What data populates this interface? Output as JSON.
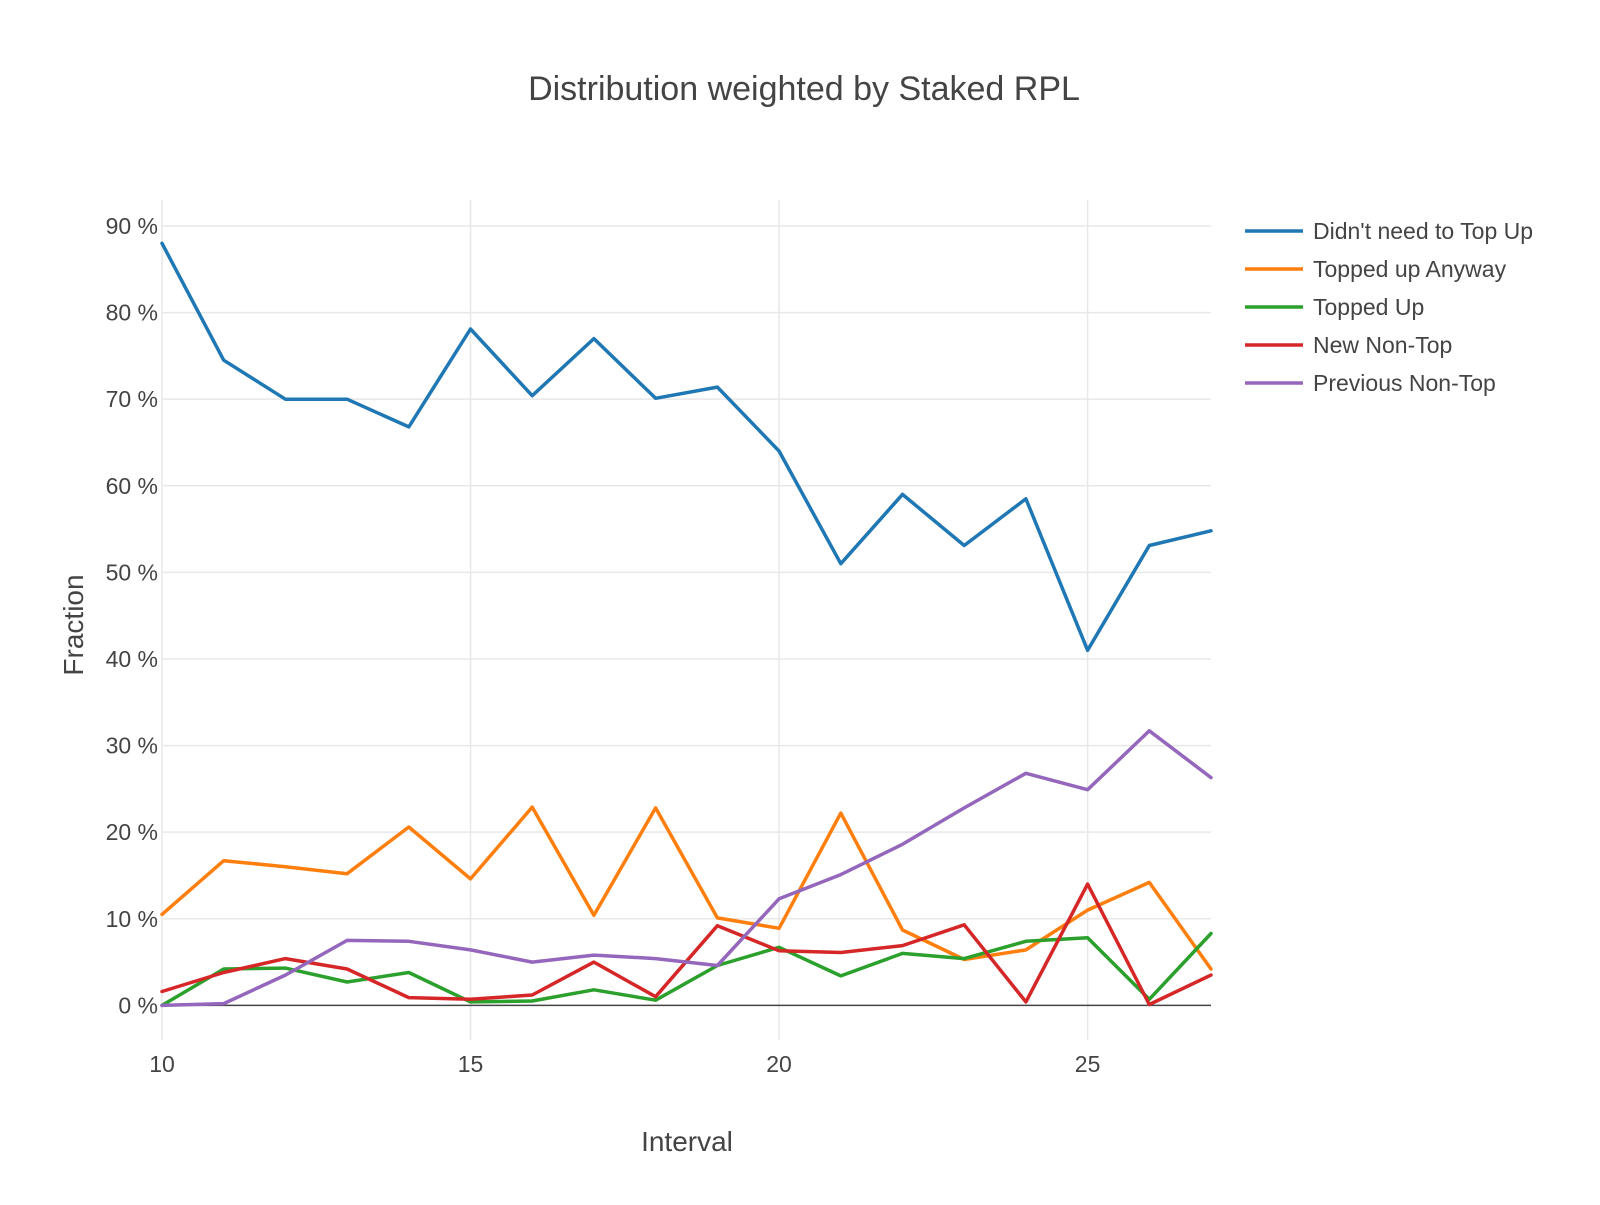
{
  "chart_data": {
    "type": "line",
    "title": "Distribution weighted by Staked RPL",
    "xlabel": "Interval",
    "ylabel": "Fraction",
    "x": [
      10,
      11,
      12,
      13,
      14,
      15,
      16,
      17,
      18,
      19,
      20,
      21,
      22,
      23,
      24,
      25,
      26,
      27
    ],
    "xlim": [
      10,
      27
    ],
    "ylim": [
      -4,
      93
    ],
    "x_ticks": [
      10,
      15,
      20,
      25
    ],
    "y_ticks": [
      0,
      10,
      20,
      30,
      40,
      50,
      60,
      70,
      80,
      90
    ],
    "y_tick_labels": [
      "0 %",
      "10 %",
      "20 %",
      "30 %",
      "40 %",
      "50 %",
      "60 %",
      "70 %",
      "80 %",
      "90 %"
    ],
    "grid": true,
    "legend_position": "right",
    "series": [
      {
        "name": "Didn't need to Top Up",
        "color": "#1f77b4",
        "values": [
          88,
          74.5,
          70,
          70,
          66.8,
          78.1,
          70.4,
          77,
          70.1,
          71.4,
          64,
          51,
          59,
          53.1,
          58.5,
          41,
          53.1,
          54.8
        ]
      },
      {
        "name": "Topped up Anyway",
        "color": "#ff7f0e",
        "values": [
          10.5,
          16.7,
          16,
          15.2,
          20.6,
          14.6,
          22.9,
          10.4,
          22.8,
          10.1,
          8.9,
          22.2,
          8.7,
          5.3,
          6.4,
          11,
          14.2,
          4.2
        ]
      },
      {
        "name": "Topped Up",
        "color": "#2ca02c",
        "values": [
          0,
          4.2,
          4.3,
          2.7,
          3.8,
          0.4,
          0.5,
          1.8,
          0.6,
          4.6,
          6.7,
          3.4,
          6,
          5.4,
          7.4,
          7.8,
          0.7,
          8.3
        ]
      },
      {
        "name": "New Non-Top",
        "color": "#d62728",
        "values": [
          1.6,
          3.8,
          5.4,
          4.2,
          0.9,
          0.7,
          1.2,
          5,
          1,
          9.2,
          6.3,
          6.1,
          6.9,
          9.3,
          0.4,
          14,
          0.1,
          3.5
        ]
      },
      {
        "name": "Previous Non-Top",
        "color": "#9467bd",
        "values": [
          0,
          0.2,
          3.5,
          7.5,
          7.4,
          6.4,
          5,
          5.8,
          5.4,
          4.6,
          12.3,
          15.1,
          18.6,
          22.8,
          26.8,
          24.9,
          31.7,
          26.3
        ]
      }
    ]
  }
}
